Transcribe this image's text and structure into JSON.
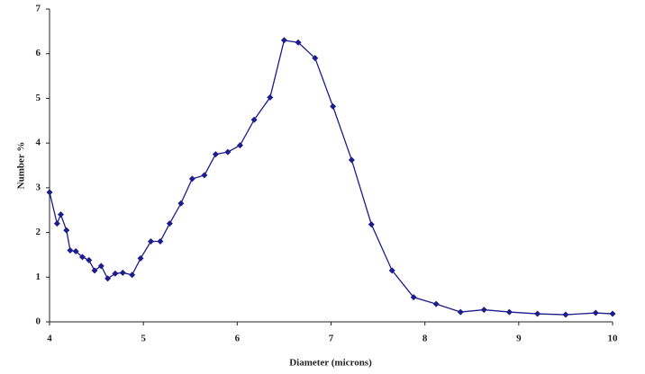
{
  "chart_data": {
    "type": "line",
    "xlabel": "Diameter (microns)",
    "ylabel": "Number %",
    "x": [
      4.0,
      4.08,
      4.12,
      4.18,
      4.22,
      4.28,
      4.35,
      4.42,
      4.48,
      4.55,
      4.62,
      4.7,
      4.78,
      4.88,
      4.97,
      5.08,
      5.18,
      5.28,
      5.4,
      5.52,
      5.65,
      5.77,
      5.9,
      6.03,
      6.18,
      6.35,
      6.5,
      6.65,
      6.83,
      7.02,
      7.22,
      7.43,
      7.65,
      7.88,
      8.12,
      8.38,
      8.63,
      8.9,
      9.2,
      9.5,
      9.82,
      10.0
    ],
    "series": [
      {
        "color": "#1c1c8c",
        "values": [
          2.9,
          2.2,
          2.4,
          2.05,
          1.6,
          1.58,
          1.45,
          1.38,
          1.15,
          1.25,
          0.97,
          1.08,
          1.1,
          1.05,
          1.42,
          1.8,
          1.8,
          2.2,
          2.65,
          3.2,
          3.28,
          3.75,
          3.8,
          3.95,
          4.52,
          5.02,
          6.3,
          6.25,
          5.9,
          4.82,
          3.62,
          2.18,
          1.15,
          0.55,
          0.4,
          0.22,
          0.27,
          0.22,
          0.18,
          0.16,
          0.2,
          0.18
        ]
      }
    ],
    "xlim": [
      4,
      10
    ],
    "xticks": [
      4,
      5,
      6,
      7,
      8,
      9,
      10
    ],
    "ylim": [
      0,
      7
    ],
    "yticks": [
      0,
      1,
      2,
      3,
      4,
      5,
      6,
      7
    ]
  }
}
